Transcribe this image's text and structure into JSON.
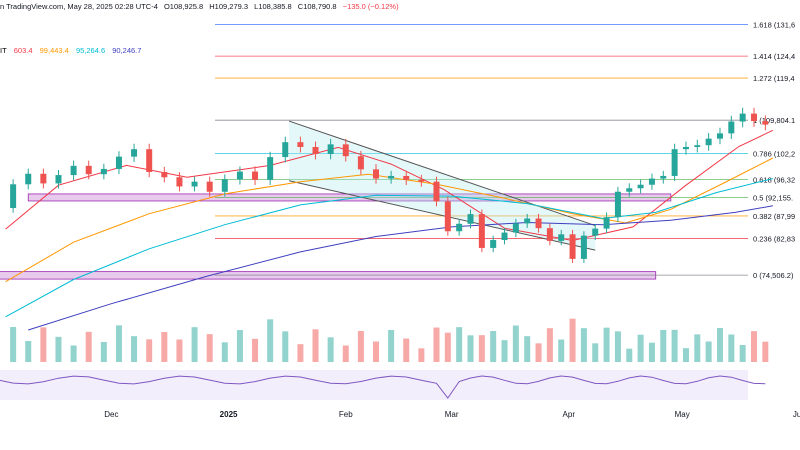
{
  "header": {
    "source_text": "n TradingView.com, May 28, 2025 02:28 UTC-4",
    "open": "O108,925.8",
    "high": "H109,279.3",
    "low": "L108,385.8",
    "close": "C108,790.8",
    "change": "−135.0 (−0.12%)",
    "symbol_fragment": "IT",
    "change_color": "#f23645"
  },
  "moving_averages": [
    {
      "value": "603.4",
      "color": "#f23645"
    },
    {
      "value": "99,443.4",
      "color": "#ff9800"
    },
    {
      "value": "95,264.6",
      "color": "#00bcd4"
    },
    {
      "value": "90,246.7",
      "color": "#3f3fbf"
    }
  ],
  "chart_data": {
    "type": "candlestick",
    "x_ticks": [
      "Dec",
      "2025",
      "Feb",
      "Mar",
      "Apr",
      "May",
      "Jun"
    ],
    "x_tick_days": [
      30,
      61,
      92,
      120,
      151,
      181,
      212
    ],
    "y_range": [
      62000,
      134000
    ],
    "fib_levels": [
      {
        "label": "1.618 (131,6",
        "ratio": 1.618,
        "value": 131600,
        "color": "#2962ff"
      },
      {
        "label": "1.414 (124,4",
        "ratio": 1.414,
        "value": 124400,
        "color": "#f23645"
      },
      {
        "label": "1.272 (119,4",
        "ratio": 1.272,
        "value": 119400,
        "color": "#ff9800"
      },
      {
        "label": "1 (109,804.1",
        "ratio": 1,
        "value": 109804.1,
        "color": "#787b86"
      },
      {
        "label": "0.786 (102,2",
        "ratio": 0.786,
        "value": 102200,
        "color": "#26c6da"
      },
      {
        "label": "0.618 (96,32",
        "ratio": 0.618,
        "value": 96320,
        "color": "#4caf50"
      },
      {
        "label": "0.5 (92,155.",
        "ratio": 0.5,
        "value": 92155,
        "color": "#4caf50"
      },
      {
        "label": "0.382 (87,99",
        "ratio": 0.382,
        "value": 87990,
        "color": "#ff9800"
      },
      {
        "label": "0.236 (82,83",
        "ratio": 0.236,
        "value": 82830,
        "color": "#f23645"
      },
      {
        "label": "0 (74,506.2)",
        "ratio": 0,
        "value": 74506.2,
        "color": "#787b86"
      }
    ],
    "support_zones": [
      {
        "from_day": 8,
        "to_day": 178,
        "low": 91400,
        "high": 93000
      },
      {
        "from_day": 0,
        "to_day": 174,
        "low": 73600,
        "high": 75300
      }
    ],
    "descending_channel": {
      "upper": [
        {
          "day": 77,
          "price": 109600
        },
        {
          "day": 158,
          "price": 85800
        }
      ],
      "lower": [
        {
          "day": 77,
          "price": 96000
        },
        {
          "day": 158,
          "price": 80200
        }
      ]
    },
    "closes": [
      [
        0,
        89800
      ],
      [
        4,
        95200
      ],
      [
        8,
        97600
      ],
      [
        12,
        95400
      ],
      [
        16,
        97300
      ],
      [
        20,
        99400
      ],
      [
        24,
        97500
      ],
      [
        28,
        98700
      ],
      [
        32,
        101500
      ],
      [
        36,
        103200
      ],
      [
        40,
        98000
      ],
      [
        44,
        96800
      ],
      [
        48,
        94700
      ],
      [
        52,
        95800
      ],
      [
        56,
        93500
      ],
      [
        60,
        96300
      ],
      [
        64,
        98100
      ],
      [
        68,
        96200
      ],
      [
        72,
        101400
      ],
      [
        76,
        104800
      ],
      [
        80,
        103700
      ],
      [
        84,
        102100
      ],
      [
        88,
        104300
      ],
      [
        92,
        101600
      ],
      [
        96,
        98600
      ],
      [
        100,
        96500
      ],
      [
        104,
        97100
      ],
      [
        108,
        96200
      ],
      [
        112,
        95800
      ],
      [
        116,
        91300
      ],
      [
        119,
        84500
      ],
      [
        122,
        86200
      ],
      [
        125,
        88400
      ],
      [
        128,
        80700
      ],
      [
        131,
        82500
      ],
      [
        134,
        84200
      ],
      [
        137,
        86300
      ],
      [
        140,
        87400
      ],
      [
        143,
        85200
      ],
      [
        146,
        82300
      ],
      [
        149,
        83800
      ],
      [
        152,
        78200
      ],
      [
        155,
        83500
      ],
      [
        158,
        85100
      ],
      [
        161,
        87700
      ],
      [
        164,
        93500
      ],
      [
        167,
        94300
      ],
      [
        170,
        95100
      ],
      [
        173,
        96500
      ],
      [
        176,
        97100
      ],
      [
        179,
        103200
      ],
      [
        182,
        103700
      ],
      [
        185,
        104100
      ],
      [
        188,
        105600
      ],
      [
        191,
        106800
      ],
      [
        194,
        109500
      ],
      [
        197,
        111300
      ],
      [
        200,
        109600
      ],
      [
        203,
        108800
      ]
    ],
    "ma_series": [
      {
        "name": "603.4",
        "color": "#f23645",
        "points": [
          [
            2,
            85000
          ],
          [
            16,
            95000
          ],
          [
            34,
            99500
          ],
          [
            50,
            96800
          ],
          [
            72,
            99500
          ],
          [
            90,
            103600
          ],
          [
            104,
            99800
          ],
          [
            118,
            94000
          ],
          [
            134,
            85200
          ],
          [
            152,
            82400
          ],
          [
            168,
            85500
          ],
          [
            182,
            95000
          ],
          [
            196,
            103800
          ],
          [
            205,
            107500
          ]
        ]
      },
      {
        "name": "99,443.4",
        "color": "#ff9800",
        "points": [
          [
            2,
            73000
          ],
          [
            20,
            82000
          ],
          [
            40,
            88500
          ],
          [
            60,
            93000
          ],
          [
            80,
            95800
          ],
          [
            98,
            97500
          ],
          [
            116,
            95200
          ],
          [
            134,
            92000
          ],
          [
            152,
            88500
          ],
          [
            166,
            86400
          ],
          [
            178,
            89500
          ],
          [
            192,
            95500
          ],
          [
            205,
            101200
          ]
        ]
      },
      {
        "name": "95,264.6",
        "color": "#00bcd4",
        "points": [
          [
            2,
            65000
          ],
          [
            20,
            73500
          ],
          [
            40,
            80500
          ],
          [
            60,
            86000
          ],
          [
            80,
            90500
          ],
          [
            100,
            92700
          ],
          [
            120,
            92500
          ],
          [
            140,
            90800
          ],
          [
            160,
            87400
          ],
          [
            174,
            88800
          ],
          [
            190,
            93300
          ],
          [
            205,
            96500
          ]
        ]
      },
      {
        "name": "90,246.7",
        "color": "#3f3fbf",
        "points": [
          [
            8,
            62000
          ],
          [
            30,
            68000
          ],
          [
            55,
            74200
          ],
          [
            80,
            79800
          ],
          [
            100,
            83300
          ],
          [
            120,
            85500
          ],
          [
            140,
            86500
          ],
          [
            160,
            86000
          ],
          [
            178,
            87000
          ],
          [
            195,
            88800
          ],
          [
            205,
            90300
          ]
        ]
      }
    ],
    "rsi_line": {
      "color": "#7e57c2"
    },
    "volume_colors": {
      "up": "#92d3cd",
      "down": "#f7a9a7"
    },
    "annotation": "none"
  }
}
